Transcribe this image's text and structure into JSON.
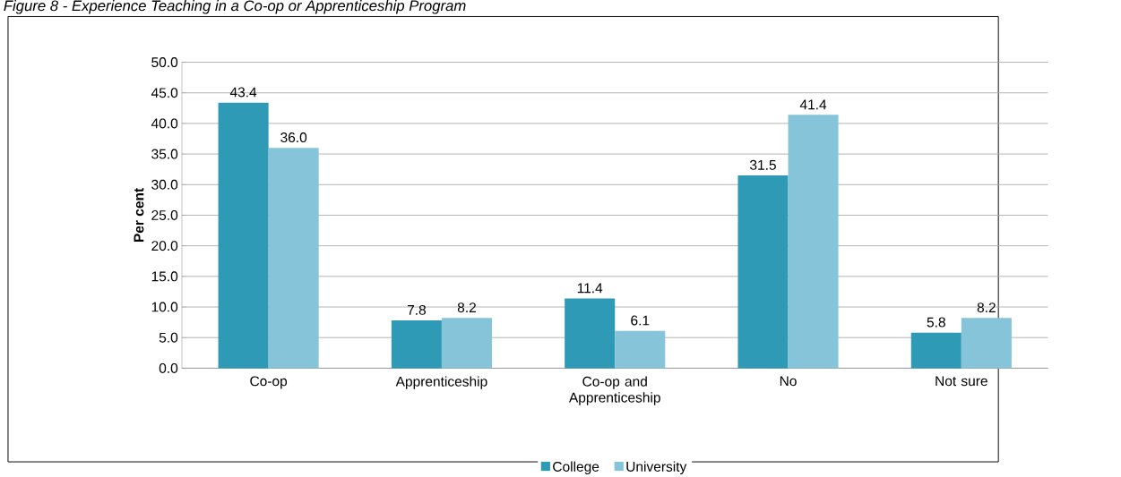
{
  "chart_data": {
    "type": "bar",
    "title": "Figure 8 - Experience Teaching in a Co-op or Apprenticeship Program",
    "ylabel": "Per cent",
    "categories": [
      "Co-op",
      "Apprenticeship",
      "Co-op and Apprenticeship",
      "No",
      "Not sure"
    ],
    "series": [
      {
        "name": "College",
        "color": "#2e9ab5",
        "values": [
          43.4,
          7.8,
          11.4,
          31.5,
          5.8
        ],
        "value_labels": [
          "43.4",
          "7.8",
          "11.4",
          "31.5",
          "5.8"
        ]
      },
      {
        "name": "University",
        "color": "#86c4d9",
        "values": [
          36.0,
          8.2,
          6.1,
          41.4,
          8.2
        ],
        "value_labels": [
          "36.0",
          "8.2",
          "6.1",
          "41.4",
          "8.2"
        ]
      }
    ],
    "ylim": [
      0,
      50
    ],
    "yticks": [
      {
        "value": 0,
        "label": "0.0"
      },
      {
        "value": 5,
        "label": "5.0"
      },
      {
        "value": 10,
        "label": "10.0"
      },
      {
        "value": 15,
        "label": "15.0"
      },
      {
        "value": 20,
        "label": "20.0"
      },
      {
        "value": 25,
        "label": "25.0"
      },
      {
        "value": 30,
        "label": "30.0"
      },
      {
        "value": 35,
        "label": "35.0"
      },
      {
        "value": 40,
        "label": "40.0"
      },
      {
        "value": 45,
        "label": "45.0"
      },
      {
        "value": 50,
        "label": "50.0"
      }
    ],
    "grid": "y",
    "legend": "bottom"
  }
}
